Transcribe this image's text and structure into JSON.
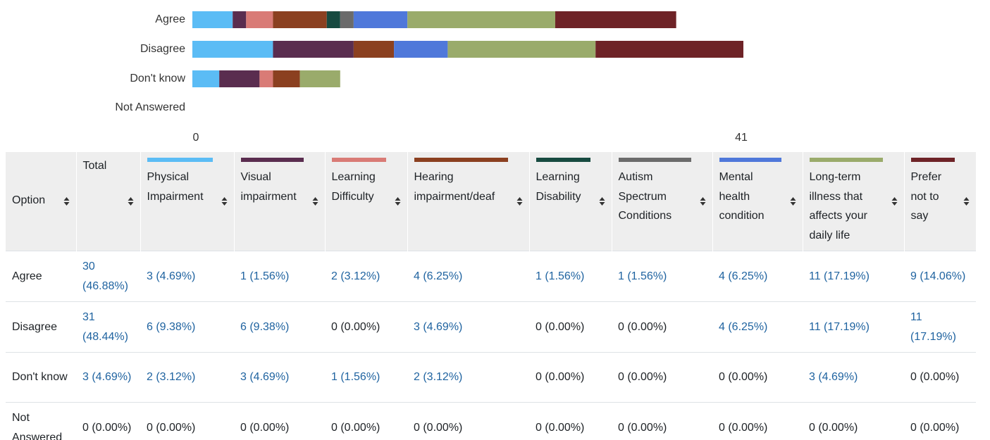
{
  "chart_data": {
    "type": "bar",
    "orientation": "horizontal",
    "stacked": true,
    "categories": [
      "Agree",
      "Disagree",
      "Don't know",
      "Not Answered"
    ],
    "series": [
      {
        "name": "Physical Impairment",
        "color": "#5bbcf5",
        "values": [
          3,
          6,
          2,
          0
        ]
      },
      {
        "name": "Visual impairment",
        "color": "#5a2d4f",
        "values": [
          1,
          6,
          3,
          0
        ]
      },
      {
        "name": "Learning Difficulty",
        "color": "#d97b76",
        "values": [
          2,
          0,
          1,
          0
        ]
      },
      {
        "name": "Hearing impairment/deaf",
        "color": "#8b4020",
        "values": [
          4,
          3,
          2,
          0
        ]
      },
      {
        "name": "Learning Disability",
        "color": "#174a40",
        "values": [
          1,
          0,
          0,
          0
        ]
      },
      {
        "name": "Autism Spectrum Conditions",
        "color": "#6b6b6b",
        "values": [
          1,
          0,
          0,
          0
        ]
      },
      {
        "name": "Mental health condition",
        "color": "#4f78da",
        "values": [
          4,
          4,
          0,
          0
        ]
      },
      {
        "name": "Long-term illness that affects your daily life",
        "color": "#9aab6b",
        "values": [
          11,
          11,
          3,
          0
        ]
      },
      {
        "name": "Prefer not to say",
        "color": "#6e2327",
        "values": [
          9,
          11,
          0,
          0
        ]
      }
    ],
    "xlim": [
      0,
      41
    ],
    "xticks": [
      0,
      41
    ]
  },
  "table": {
    "header": {
      "option": "Option",
      "total": "Total"
    },
    "rows": [
      {
        "total": "30 (46.88%)",
        "cells": [
          "3 (4.69%)",
          "1 (1.56%)",
          "2 (3.12%)",
          "4 (6.25%)",
          "1 (1.56%)",
          "1 (1.56%)",
          "4 (6.25%)",
          "11 (17.19%)",
          "9 (14.06%)"
        ]
      },
      {
        "total": "31 (48.44%)",
        "cells": [
          "6 (9.38%)",
          "6 (9.38%)",
          "0 (0.00%)",
          "3 (4.69%)",
          "0 (0.00%)",
          "0 (0.00%)",
          "4 (6.25%)",
          "11 (17.19%)",
          "11 (17.19%)"
        ]
      },
      {
        "total": "3 (4.69%)",
        "cells": [
          "2 (3.12%)",
          "3 (4.69%)",
          "1 (1.56%)",
          "2 (3.12%)",
          "0 (0.00%)",
          "0 (0.00%)",
          "0 (0.00%)",
          "3 (4.69%)",
          "0 (0.00%)"
        ]
      },
      {
        "total": "0 (0.00%)",
        "cells": [
          "0 (0.00%)",
          "0 (0.00%)",
          "0 (0.00%)",
          "0 (0.00%)",
          "0 (0.00%)",
          "0 (0.00%)",
          "0 (0.00%)",
          "0 (0.00%)",
          "0 (0.00%)"
        ]
      }
    ]
  }
}
